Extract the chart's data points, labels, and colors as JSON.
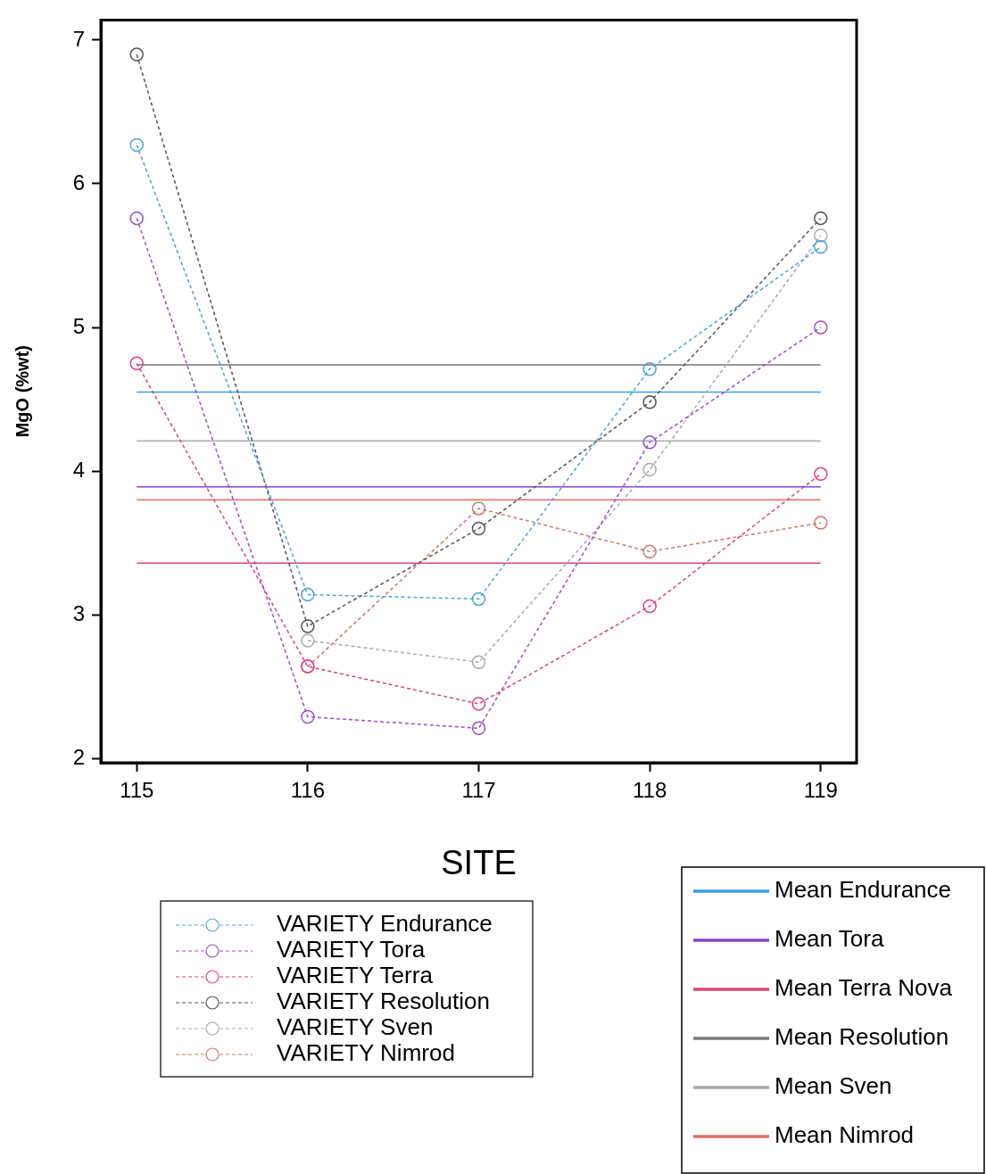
{
  "chart_data": {
    "type": "line",
    "xlabel": "SITE",
    "ylabel": "MgO (%wt)",
    "x": [
      115,
      116,
      117,
      118,
      119
    ],
    "xlim": [
      114.79,
      119.21
    ],
    "xticks": [
      115,
      116,
      117,
      118,
      119
    ],
    "ylim": [
      1.97,
      7.14
    ],
    "yticks": [
      2,
      3,
      4,
      5,
      6,
      7
    ],
    "grid": false,
    "legend": "bottom",
    "marker": "circle",
    "line_style": "dashed",
    "series": [
      {
        "name": "VARIETY Endurance",
        "color": "#4fa3d8",
        "values": [
          6.27,
          3.14,
          3.11,
          4.71,
          5.56
        ]
      },
      {
        "name": "VARIETY Tora",
        "color": "#9b4fc9",
        "values": [
          5.76,
          2.29,
          2.21,
          4.2,
          5.0
        ]
      },
      {
        "name": "VARIETY Terra",
        "color": "#d9428a",
        "values": [
          4.75,
          2.64,
          2.38,
          3.06,
          3.98
        ]
      },
      {
        "name": "VARIETY Resolution",
        "color": "#555555",
        "values": [
          6.9,
          2.92,
          3.6,
          4.48,
          5.76
        ]
      },
      {
        "name": "VARIETY Sven",
        "color": "#aaaaaa",
        "values": [
          null,
          2.82,
          2.67,
          4.01,
          5.64
        ]
      },
      {
        "name": "VARIETY Nimrod",
        "color": "#c97a70",
        "values": [
          null,
          2.64,
          3.74,
          3.44,
          3.64
        ]
      }
    ],
    "ref_lines": [
      {
        "axis": "y",
        "value": 4.55,
        "label": "Mean Endurance",
        "color": "#3d9ee0"
      },
      {
        "axis": "y",
        "value": 3.89,
        "label": "Mean Tora",
        "color": "#8844cc"
      },
      {
        "axis": "y",
        "value": 3.36,
        "label": "Mean Terra Nova",
        "color": "#e0457a"
      },
      {
        "axis": "y",
        "value": 4.74,
        "label": "Mean Resolution",
        "color": "#777777"
      },
      {
        "axis": "y",
        "value": 4.21,
        "label": "Mean Sven",
        "color": "#aaaaaa"
      },
      {
        "axis": "y",
        "value": 3.8,
        "label": "Mean Nimrod",
        "color": "#e07060"
      }
    ]
  }
}
